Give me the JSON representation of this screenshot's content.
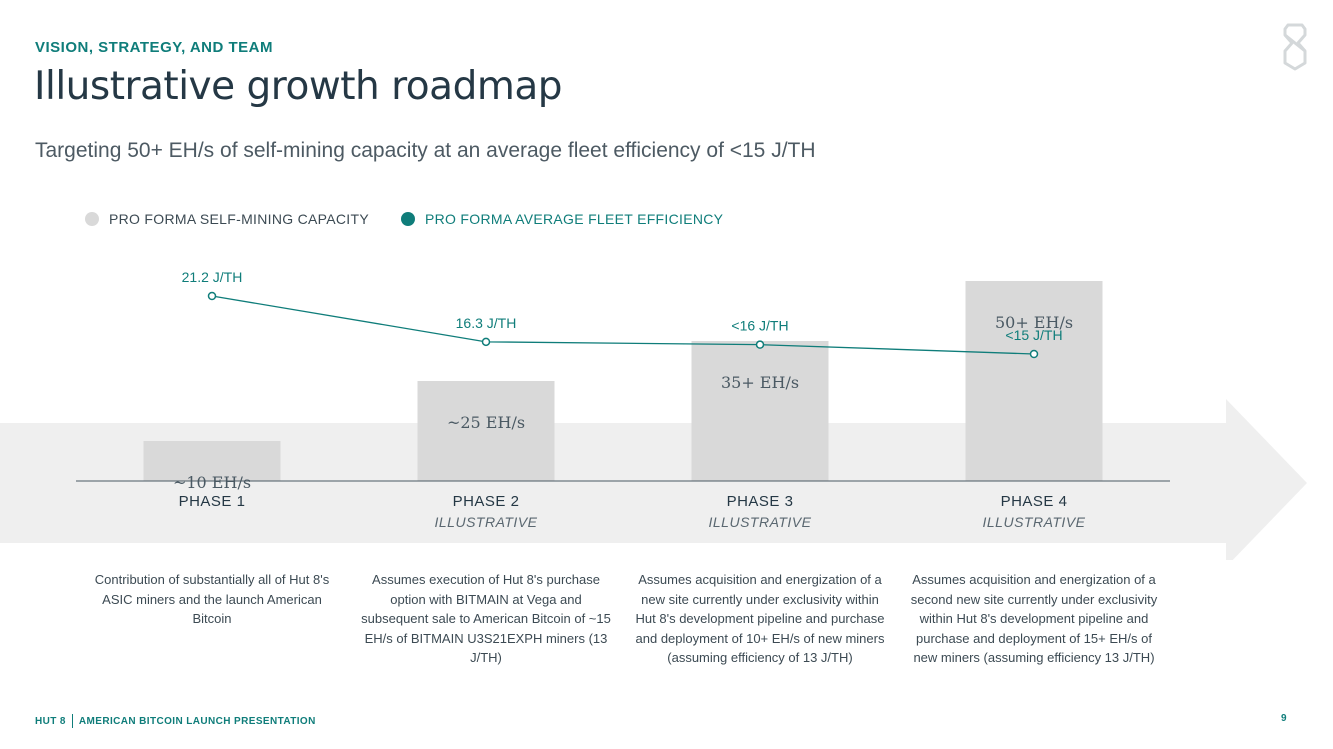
{
  "header": {
    "eyebrow": "VISION, STRATEGY, AND TEAM",
    "title": "Illustrative growth roadmap",
    "subtitle": "Targeting 50+ EH/s of self-mining capacity at an average fleet efficiency of <15 J/TH"
  },
  "colors": {
    "teal": "#0f7d7a",
    "bar_gray": "#d9d9d9",
    "band_gray": "#efefef",
    "text_dark": "#253845"
  },
  "chart_data": {
    "type": "bar",
    "categories": [
      "PHASE 1",
      "PHASE 2",
      "PHASE 3",
      "PHASE 4"
    ],
    "category_sublabels": [
      "",
      "ILLUSTRATIVE",
      "ILLUSTRATIVE",
      "ILLUSTRATIVE"
    ],
    "series": [
      {
        "name": "PRO FORMA SELF-MINING CAPACITY",
        "type": "bar",
        "values": [
          10,
          25,
          35,
          50
        ],
        "labels": [
          "~10 EH/s",
          "~25 EH/s",
          "35+ EH/s",
          "50+ EH/s"
        ]
      },
      {
        "name": "PRO FORMA AVERAGE FLEET EFFICIENCY",
        "type": "line",
        "values": [
          21.2,
          16.3,
          16.0,
          15.0
        ],
        "labels": [
          "21.2 J/TH",
          "16.3 J/TH",
          "<16 J/TH",
          "<15 J/TH"
        ]
      }
    ],
    "legend_position": "top-left",
    "grid": false
  },
  "descriptions": [
    "Contribution of substantially all of Hut 8's ASIC miners and the launch American Bitcoin",
    "Assumes execution of Hut 8's purchase option with BITMAIN at Vega and subsequent sale to American Bitcoin of ~15 EH/s of BITMAIN U3S21EXPH miners (13 J/TH)",
    "Assumes acquisition and energization of a new site currently under exclusivity within Hut 8's development pipeline and purchase and deployment of 10+ EH/s of new miners (assuming efficiency of 13 J/TH)",
    "Assumes acquisition and energization of a second new site currently under exclusivity within Hut 8's development pipeline and purchase and deployment of 15+ EH/s of new miners (assuming efficiency 13 J/TH)"
  ],
  "footer": {
    "brand": "HUT 8",
    "presentation": "AMERICAN BITCOIN LAUNCH PRESENTATION",
    "page_number": "9"
  }
}
